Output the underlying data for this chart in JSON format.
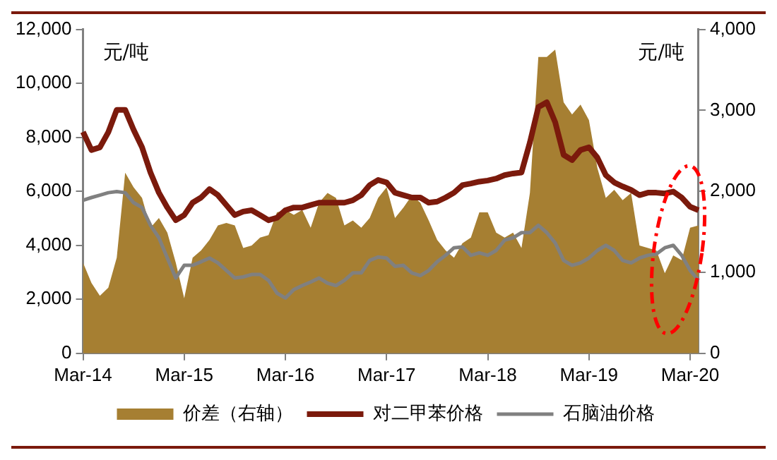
{
  "chart_data": {
    "type": "line",
    "categories": [
      "Mar-14",
      null,
      null,
      null,
      null,
      null,
      null,
      null,
      null,
      null,
      null,
      null,
      "Mar-15",
      null,
      null,
      null,
      null,
      null,
      null,
      null,
      null,
      null,
      null,
      null,
      "Mar-16",
      null,
      null,
      null,
      null,
      null,
      null,
      null,
      null,
      null,
      null,
      null,
      "Mar-17",
      null,
      null,
      null,
      null,
      null,
      null,
      null,
      null,
      null,
      null,
      null,
      "Mar-18",
      null,
      null,
      null,
      null,
      null,
      null,
      null,
      null,
      null,
      null,
      null,
      "Mar-19",
      null,
      null,
      null,
      null,
      null,
      null,
      null,
      null,
      null,
      null,
      null,
      "Mar-20",
      null
    ],
    "series": [
      {
        "name": "价差（右轴）",
        "type": "area",
        "axis": "y2",
        "color": "#a67f32",
        "values": [
          1120,
          870,
          710,
          810,
          1180,
          2230,
          2050,
          1920,
          1550,
          1670,
          1490,
          1120,
          680,
          1180,
          1270,
          1400,
          1580,
          1610,
          1580,
          1300,
          1330,
          1430,
          1460,
          1740,
          1770,
          1710,
          1770,
          1550,
          1860,
          1980,
          1920,
          1580,
          1640,
          1550,
          1670,
          1920,
          2050,
          1670,
          1800,
          1950,
          1860,
          1640,
          1400,
          1270,
          1180,
          1360,
          1430,
          1740,
          1740,
          1490,
          1430,
          1490,
          1300,
          1980,
          3660,
          3660,
          3750,
          3100,
          2950,
          3070,
          2880,
          2290,
          1920,
          2020,
          1890,
          1980,
          1330,
          1300,
          1270,
          990,
          1210,
          1150,
          1550,
          1580
        ]
      },
      {
        "name": "对二甲苯价格",
        "type": "line",
        "color": "#7b1a0c",
        "values": [
          8200,
          7530,
          7630,
          8190,
          9020,
          9020,
          8280,
          7630,
          6700,
          5950,
          5400,
          4930,
          5120,
          5580,
          5770,
          6080,
          5860,
          5490,
          5120,
          5250,
          5300,
          5120,
          4930,
          5020,
          5300,
          5400,
          5400,
          5490,
          5580,
          5580,
          5580,
          5580,
          5670,
          5860,
          6230,
          6420,
          6330,
          5950,
          5860,
          5770,
          5770,
          5580,
          5620,
          5770,
          5950,
          6230,
          6290,
          6360,
          6400,
          6470,
          6600,
          6660,
          6700,
          7810,
          9120,
          9300,
          8560,
          7350,
          7160,
          7530,
          7630,
          7250,
          6600,
          6330,
          6180,
          6050,
          5860,
          5950,
          5950,
          5920,
          5990,
          5770,
          5430,
          5300
        ]
      },
      {
        "name": "石脑油价格",
        "type": "line",
        "color": "#808080",
        "values": [
          5670,
          5770,
          5860,
          5950,
          5990,
          5950,
          5580,
          5400,
          4740,
          4280,
          3530,
          2790,
          3260,
          3260,
          3390,
          3530,
          3350,
          3070,
          2790,
          2830,
          2920,
          2920,
          2700,
          2230,
          2050,
          2360,
          2510,
          2640,
          2790,
          2600,
          2510,
          2700,
          2980,
          2980,
          3440,
          3570,
          3530,
          3220,
          3260,
          2980,
          2880,
          3070,
          3390,
          3630,
          3910,
          3940,
          3630,
          3720,
          3630,
          3810,
          4190,
          4280,
          4470,
          4470,
          4740,
          4470,
          4090,
          3440,
          3260,
          3350,
          3530,
          3810,
          4000,
          3810,
          3440,
          3350,
          3530,
          3630,
          3680,
          3910,
          4000,
          3630,
          3070,
          2700
        ]
      }
    ],
    "ylabel": "元/吨",
    "y2label": "元/吨",
    "ylim": [
      0,
      12000
    ],
    "yticks": [
      0,
      {
        "value": 2000,
        "label": "2,000"
      },
      {
        "value": 4000,
        "label": "4,000"
      },
      {
        "value": 6000,
        "label": "6,000"
      },
      {
        "value": 8000,
        "label": "8,000"
      },
      {
        "value": 10000,
        "label": "10,000"
      },
      {
        "value": 12000,
        "label": "12,000"
      }
    ],
    "y2lim": [
      0,
      4000
    ],
    "y2ticks": [
      0,
      {
        "value": 1000,
        "label": "1,000"
      },
      {
        "value": 2000,
        "label": "2,000"
      },
      {
        "value": 3000,
        "label": "3,000"
      },
      {
        "value": 4000,
        "label": "4,000"
      }
    ],
    "grid": false,
    "legend": "bottom",
    "marker": "none",
    "line_style": "solid"
  }
}
